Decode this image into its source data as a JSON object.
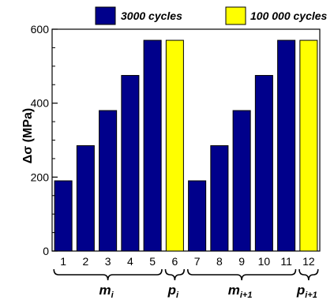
{
  "chart_data": {
    "type": "bar",
    "title": "",
    "xlabel": "",
    "ylabel": "Δσ (MPa)",
    "ylim": [
      0,
      600
    ],
    "yticks": [
      0,
      200,
      400,
      600
    ],
    "grid": false,
    "legend_position": "top",
    "categories": [
      "1",
      "2",
      "3",
      "4",
      "5",
      "6",
      "7",
      "8",
      "9",
      "10",
      "11",
      "12"
    ],
    "values": [
      190,
      285,
      380,
      475,
      570,
      570,
      190,
      285,
      380,
      475,
      570,
      570
    ],
    "bar_series": [
      "3000 cycles",
      "3000 cycles",
      "3000 cycles",
      "3000 cycles",
      "3000 cycles",
      "100 000 cycles",
      "3000 cycles",
      "3000 cycles",
      "3000 cycles",
      "3000 cycles",
      "3000 cycles",
      "100 000 cycles"
    ],
    "series": [
      {
        "name": "3000 cycles",
        "color": "#00008b"
      },
      {
        "name": "100 000 cycles",
        "color": "#ffff00"
      }
    ],
    "groups": [
      {
        "label": "m",
        "sub": "i",
        "from": "1",
        "to": "5"
      },
      {
        "label": "p",
        "sub": "i",
        "from": "6",
        "to": "6"
      },
      {
        "label": "m",
        "sub": "i+1",
        "from": "7",
        "to": "11"
      },
      {
        "label": "p",
        "sub": "i+1",
        "from": "12",
        "to": "12"
      }
    ]
  }
}
